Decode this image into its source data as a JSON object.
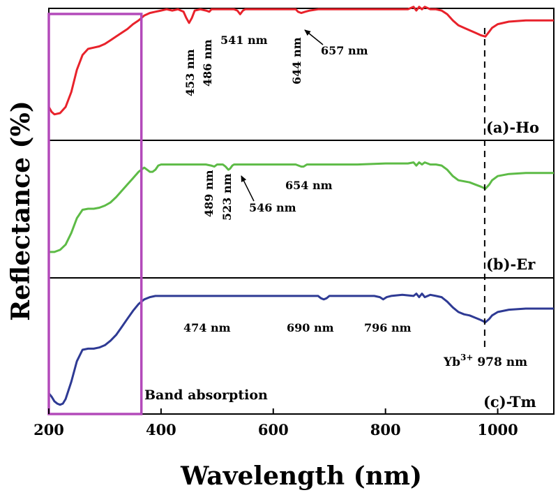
{
  "chart_data": {
    "type": "line",
    "xlabel": "Wavelength (nm)",
    "ylabel": "Reflectance (%)",
    "xlim": [
      200,
      1100
    ],
    "x_ticks": [
      "200",
      "400",
      "600",
      "800",
      "1000"
    ],
    "x_tick_values": [
      200,
      400,
      600,
      800,
      1000
    ],
    "grid": false,
    "legend": "none",
    "vline": {
      "x": 978,
      "style": "dashed",
      "label_prefix": "Yb",
      "label_sup": "3+",
      "label_suffix": " 978 nm"
    },
    "band_box": {
      "x_start": 200,
      "x_end": 365,
      "label": "Band absorption",
      "color": "#b34aba"
    },
    "panels": [
      {
        "name": "(a)-Ho",
        "color": "#e8222b",
        "ylim": [
          0,
          100
        ],
        "x": [
          200,
          205,
          210,
          220,
          230,
          240,
          250,
          260,
          270,
          280,
          290,
          300,
          310,
          320,
          330,
          340,
          350,
          360,
          370,
          380,
          390,
          400,
          410,
          420,
          430,
          440,
          445,
          450,
          455,
          460,
          470,
          480,
          486,
          490,
          500,
          510,
          520,
          530,
          536,
          541,
          546,
          550,
          560,
          580,
          600,
          620,
          640,
          644,
          650,
          657,
          665,
          680,
          700,
          720,
          740,
          760,
          780,
          800,
          820,
          840,
          850,
          855,
          860,
          865,
          870,
          880,
          890,
          900,
          910,
          920,
          930,
          940,
          950,
          960,
          970,
          978,
          985,
          990,
          1000,
          1020,
          1050,
          1080,
          1100
        ],
        "y": [
          18,
          14,
          12,
          13,
          18,
          30,
          48,
          60,
          65,
          66,
          67,
          69,
          72,
          75,
          78,
          81,
          85,
          88,
          92,
          94,
          95,
          96,
          97,
          96,
          97,
          95,
          90,
          86,
          90,
          96,
          97,
          96,
          95,
          97,
          97,
          97,
          97,
          97,
          96,
          93,
          96,
          97,
          97,
          97,
          97,
          97,
          97,
          95,
          94,
          95,
          96,
          97,
          97,
          97,
          97,
          97,
          97,
          97,
          97,
          97,
          99,
          96,
          99,
          97,
          99,
          97,
          97,
          96,
          93,
          88,
          84,
          82,
          80,
          78,
          76,
          75,
          79,
          82,
          85,
          87,
          88,
          88,
          88
        ]
      },
      {
        "name": "(b)-Er",
        "color": "#5dbb46",
        "ylim": [
          0,
          100
        ],
        "x": [
          200,
          210,
          220,
          230,
          240,
          250,
          260,
          270,
          280,
          290,
          300,
          310,
          320,
          330,
          340,
          350,
          360,
          370,
          380,
          385,
          390,
          395,
          400,
          420,
          440,
          460,
          480,
          489,
          495,
          500,
          510,
          515,
          520,
          523,
          527,
          530,
          540,
          560,
          600,
          640,
          650,
          654,
          660,
          680,
          700,
          750,
          800,
          820,
          840,
          850,
          855,
          860,
          865,
          870,
          880,
          890,
          900,
          910,
          920,
          930,
          940,
          950,
          960,
          970,
          978,
          985,
          990,
          1000,
          1020,
          1050,
          1080,
          1100
        ],
        "y": [
          10,
          10,
          12,
          17,
          28,
          42,
          50,
          51,
          51,
          52,
          54,
          57,
          62,
          68,
          74,
          80,
          86,
          90,
          86,
          86,
          88,
          92,
          93,
          93,
          93,
          93,
          93,
          92,
          91,
          93,
          93,
          91,
          88,
          89,
          92,
          93,
          93,
          93,
          93,
          93,
          91,
          91,
          93,
          93,
          93,
          93,
          94,
          94,
          94,
          95,
          92,
          95,
          93,
          95,
          93,
          93,
          92,
          88,
          82,
          78,
          77,
          76,
          74,
          72,
          70,
          74,
          78,
          82,
          84,
          85,
          85,
          85
        ]
      },
      {
        "name": "(c)-Tm",
        "color": "#2e3a94",
        "ylim": [
          0,
          100
        ],
        "x": [
          200,
          205,
          210,
          215,
          220,
          225,
          230,
          240,
          250,
          260,
          270,
          280,
          290,
          300,
          310,
          320,
          330,
          340,
          350,
          360,
          370,
          380,
          390,
          400,
          420,
          440,
          460,
          474,
          500,
          550,
          600,
          650,
          680,
          685,
          690,
          695,
          700,
          720,
          750,
          780,
          790,
          796,
          802,
          810,
          830,
          850,
          855,
          860,
          865,
          870,
          880,
          890,
          900,
          910,
          920,
          930,
          940,
          950,
          960,
          970,
          978,
          985,
          990,
          1000,
          1020,
          1050,
          1080,
          1100
        ],
        "y": [
          12,
          9,
          5,
          3,
          2,
          3,
          7,
          22,
          40,
          50,
          51,
          51,
          52,
          54,
          58,
          63,
          70,
          77,
          84,
          90,
          94,
          96,
          97,
          97,
          97,
          97,
          97,
          97,
          97,
          97,
          97,
          97,
          97,
          95,
          94,
          95,
          97,
          97,
          97,
          97,
          96,
          94,
          96,
          97,
          98,
          97,
          99,
          96,
          99,
          96,
          98,
          97,
          96,
          92,
          87,
          83,
          81,
          80,
          78,
          76,
          74,
          77,
          80,
          83,
          85,
          86,
          86,
          86
        ]
      }
    ],
    "annotations": [
      {
        "panel": 0,
        "text": "453 nm",
        "vertical": true
      },
      {
        "panel": 0,
        "text": "486 nm",
        "vertical": true
      },
      {
        "panel": 0,
        "text": "541 nm",
        "vertical": false
      },
      {
        "panel": 0,
        "text": "644 nm",
        "vertical": true
      },
      {
        "panel": 0,
        "text": "657 nm",
        "vertical": false,
        "arrow": true
      },
      {
        "panel": 1,
        "text": "489 nm",
        "vertical": true
      },
      {
        "panel": 1,
        "text": "523 nm",
        "vertical": true
      },
      {
        "panel": 1,
        "text": "546 nm",
        "vertical": false,
        "arrow": true
      },
      {
        "panel": 1,
        "text": "654 nm",
        "vertical": false
      },
      {
        "panel": 2,
        "text": "474 nm",
        "vertical": false
      },
      {
        "panel": 2,
        "text": "690 nm",
        "vertical": false
      },
      {
        "panel": 2,
        "text": "796 nm",
        "vertical": false
      }
    ]
  }
}
